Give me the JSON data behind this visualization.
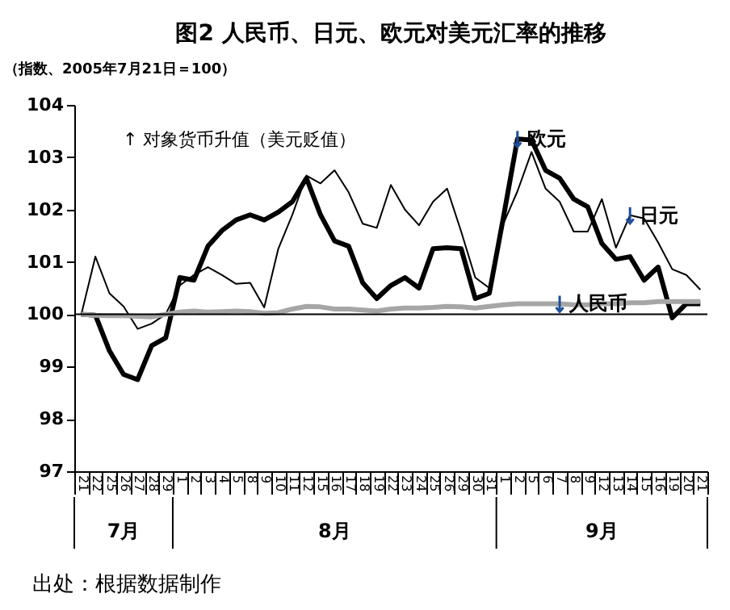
{
  "chart_data": {
    "type": "line",
    "title": "图2  人民币、日元、欧元对美元汇率的推移",
    "ylabel": "（指数、2005年7月21日＝100）",
    "categories": [
      "21",
      "22",
      "25",
      "26",
      "27",
      "28",
      "29",
      "1",
      "2",
      "3",
      "4",
      "5",
      "8",
      "9",
      "10",
      "11",
      "12",
      "15",
      "16",
      "17",
      "18",
      "19",
      "22",
      "23",
      "24",
      "25",
      "26",
      "29",
      "30",
      "31",
      "1",
      "2",
      "5",
      "6",
      "7",
      "8",
      "9",
      "12",
      "13",
      "14",
      "15",
      "16",
      "19",
      "20",
      "21"
    ],
    "series": [
      {
        "name": "欧元",
        "color": "#000000",
        "values": [
          100.0,
          99.98,
          99.3,
          98.85,
          98.75,
          99.4,
          99.55,
          100.7,
          100.65,
          101.3,
          101.6,
          101.8,
          101.9,
          101.8,
          101.95,
          102.15,
          102.6,
          101.9,
          101.4,
          101.3,
          100.6,
          100.3,
          100.55,
          100.7,
          100.5,
          101.25,
          101.27,
          101.25,
          100.3,
          100.4,
          101.85,
          103.35,
          103.33,
          102.75,
          102.6,
          102.2,
          102.05,
          101.35,
          101.05,
          101.1,
          100.65,
          100.9,
          99.93,
          100.2,
          100.2
        ]
      },
      {
        "name": "日元",
        "color": "#000000",
        "values": [
          100.0,
          101.1,
          100.4,
          100.15,
          99.72,
          99.82,
          100.0,
          100.55,
          100.75,
          100.9,
          100.75,
          100.58,
          100.6,
          100.13,
          101.25,
          101.9,
          102.65,
          102.5,
          102.75,
          102.33,
          101.73,
          101.65,
          102.47,
          102.0,
          101.7,
          102.15,
          102.4,
          101.58,
          100.7,
          100.5,
          101.73,
          102.35,
          103.1,
          102.4,
          102.15,
          101.58,
          101.58,
          102.2,
          101.27,
          101.89,
          101.83,
          101.37,
          100.86,
          100.75,
          100.47
        ]
      },
      {
        "name": "人民币",
        "color": "#a6a6a6",
        "values": [
          100.0,
          99.98,
          99.97,
          99.97,
          99.96,
          99.95,
          100.0,
          100.04,
          100.06,
          100.04,
          100.05,
          100.06,
          100.05,
          100.02,
          100.03,
          100.1,
          100.15,
          100.14,
          100.1,
          100.1,
          100.08,
          100.06,
          100.1,
          100.12,
          100.12,
          100.13,
          100.15,
          100.14,
          100.12,
          100.15,
          100.18,
          100.2,
          100.2,
          100.2,
          100.2,
          100.18,
          100.18,
          100.2,
          100.2,
          100.22,
          100.22,
          100.24,
          100.24,
          100.24,
          100.24
        ]
      }
    ],
    "ylim": [
      97,
      104
    ],
    "yticks": [
      97,
      98,
      99,
      100,
      101,
      102,
      103,
      104
    ],
    "ref_lines": [
      {
        "axis": "y",
        "value": 100,
        "color": "#000000"
      }
    ],
    "annotations": [
      "↑ 对象货币升值（美元贬值）",
      "7月",
      "8月",
      "9月",
      "出处：根据数据制作"
    ]
  }
}
